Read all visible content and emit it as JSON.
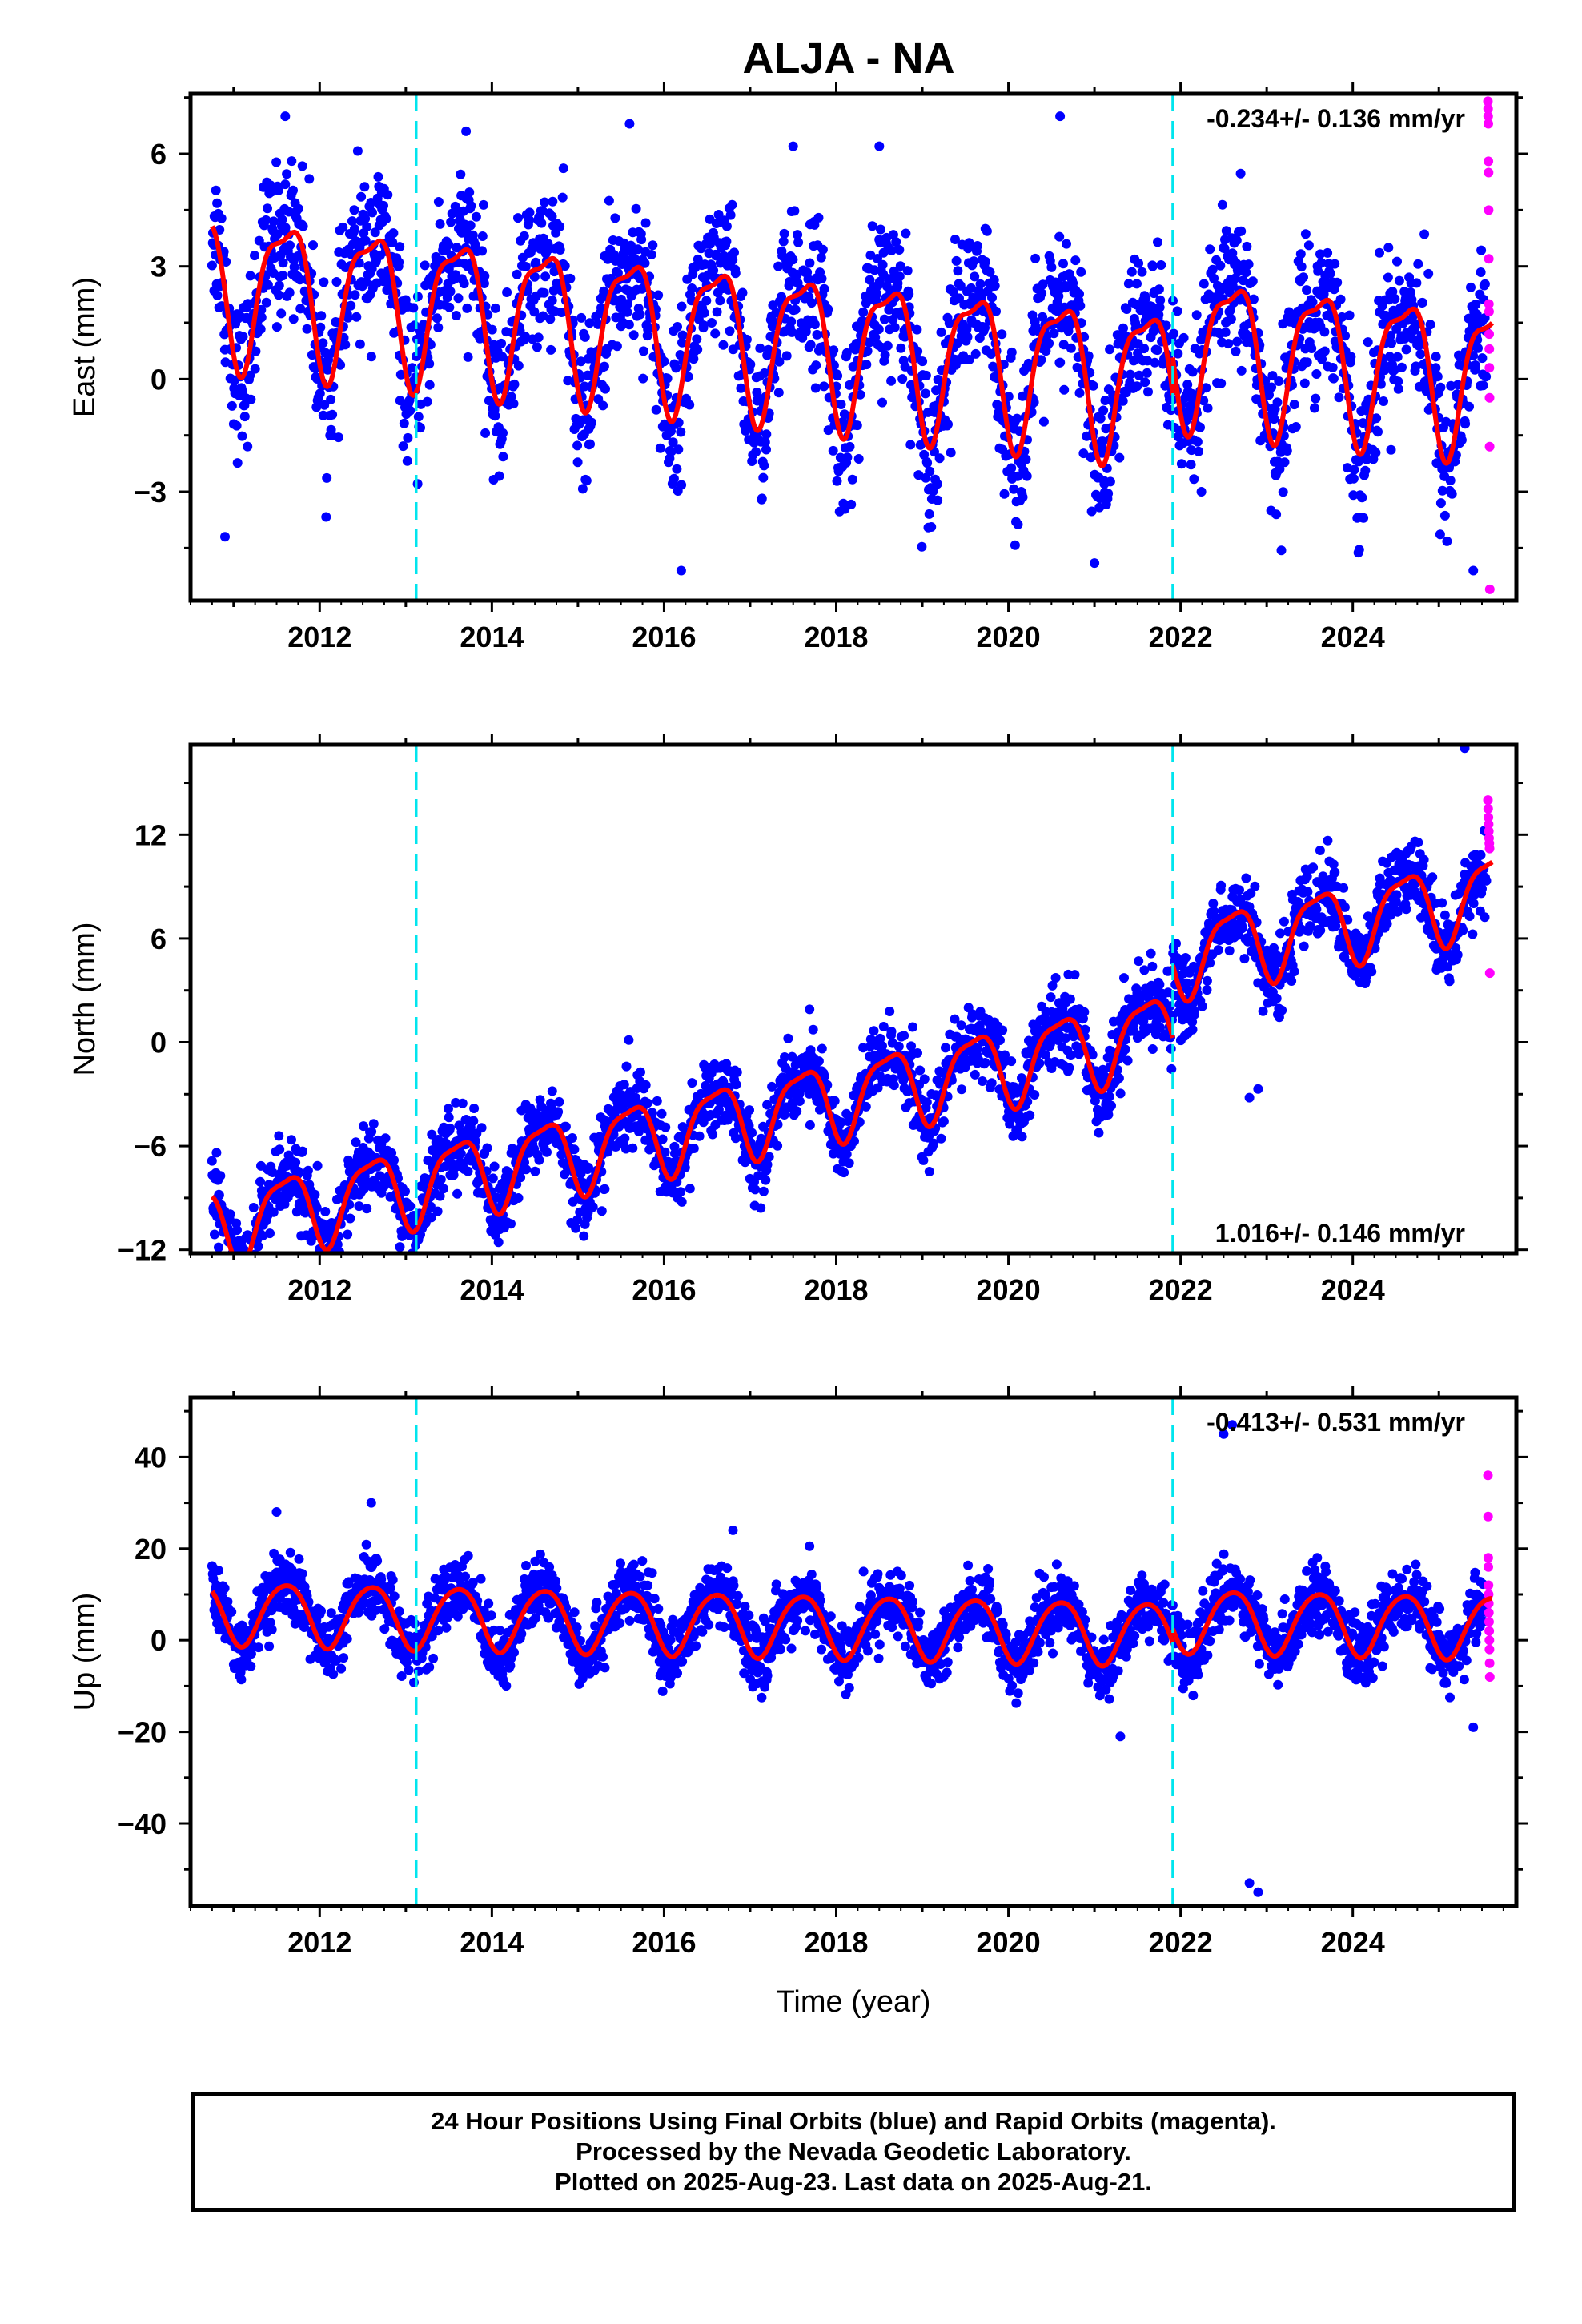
{
  "title": "ALJA - NA",
  "colors": {
    "final_orbits": "#0000ff",
    "rapid_orbits": "#ff00ff",
    "model_fit": "#ff0000",
    "offsets": "#00e5ee"
  },
  "footer": {
    "line1": "24 Hour Positions Using Final Orbits (blue) and Rapid Orbits (magenta).",
    "line2": "Processed by the Nevada Geodetic Laboratory.",
    "line3": "Plotted on 2025-Aug-23. Last data on 2025-Aug-21."
  },
  "chart_data": [
    {
      "type": "scatter",
      "ylabel": "East (mm)",
      "xlabel": "",
      "rate_text": "-0.234+/- 0.136 mm/yr",
      "xlim": [
        2010.5,
        2025.9
      ],
      "ylim": [
        -5.9,
        7.6
      ],
      "x_ticks": [
        2012,
        2014,
        2016,
        2018,
        2020,
        2022,
        2024
      ],
      "y_ticks": [
        -3,
        0,
        3,
        6
      ],
      "offset_epochs": [
        2013.12,
        2021.91
      ],
      "model": {
        "slope": -0.234,
        "intercept": 0.9,
        "annual_amp": 1.9,
        "semiannual_amp": 0.6,
        "segments": [
          [
            2010.75,
            2021.91
          ],
          [
            2021.91,
            2025.62
          ]
        ],
        "segment_offsets": [
          0,
          1.0
        ]
      },
      "final_orbits": {
        "first_epoch": 2010.75,
        "last_epoch": 2025.55,
        "scatter_sigma": 1.0,
        "outliers": [
          [
            2011.6,
            7.0
          ],
          [
            2013.7,
            6.6
          ],
          [
            2015.6,
            6.8
          ],
          [
            2017.5,
            6.2
          ],
          [
            2018.5,
            6.2
          ],
          [
            2020.6,
            7.0
          ],
          [
            2016.2,
            -5.1
          ],
          [
            2021.0,
            -4.9
          ],
          [
            2025.4,
            -5.1
          ],
          [
            2010.9,
            -4.2
          ]
        ]
      },
      "rapid_orbits": {
        "first_epoch": 2025.55,
        "last_epoch": 2025.62,
        "values": [
          7.4,
          7.2,
          7.0,
          6.8,
          5.8,
          5.5,
          4.5,
          3.2,
          2.0,
          1.8,
          1.2,
          0.8,
          0.3,
          -0.5,
          -1.8,
          -5.6
        ]
      }
    },
    {
      "type": "scatter",
      "ylabel": "North (mm)",
      "xlabel": "",
      "rate_text": "1.016+/- 0.146 mm/yr",
      "xlim": [
        2010.5,
        2025.9
      ],
      "ylim": [
        -12.2,
        17.2
      ],
      "x_ticks": [
        2012,
        2014,
        2016,
        2018,
        2020,
        2022,
        2024
      ],
      "y_ticks": [
        -12,
        -6,
        0,
        6,
        12
      ],
      "offset_epochs": [
        2013.12,
        2021.91
      ],
      "model": {
        "slope": 1.016,
        "intercept": -3.2,
        "annual_amp": 2.2,
        "semiannual_amp": 0.6,
        "segments": [
          [
            2010.75,
            2021.91
          ],
          [
            2021.91,
            2025.62
          ]
        ],
        "segment_offsets": [
          0,
          4.2
        ]
      },
      "final_orbits": {
        "first_epoch": 2010.75,
        "last_epoch": 2025.55,
        "scatter_sigma": 1.1,
        "outliers": [
          [
            2022.8,
            -3.2
          ],
          [
            2022.9,
            -2.7
          ],
          [
            2025.3,
            17.0
          ],
          [
            2012.9,
            -9.5
          ],
          [
            2011.0,
            -11.5
          ]
        ]
      },
      "rapid_orbits": {
        "first_epoch": 2025.55,
        "last_epoch": 2025.62,
        "values": [
          14.0,
          13.5,
          13.0,
          12.6,
          12.2,
          11.8,
          11.5,
          11.2,
          4.0
        ]
      }
    },
    {
      "type": "scatter",
      "ylabel": "Up (mm)",
      "xlabel": "Time (year)",
      "rate_text": "-0.413+/- 0.531 mm/yr",
      "xlim": [
        2010.5,
        2025.9
      ],
      "ylim": [
        -58,
        53
      ],
      "x_ticks": [
        2012,
        2014,
        2016,
        2018,
        2020,
        2022,
        2024
      ],
      "y_ticks": [
        -40,
        -20,
        0,
        20,
        40
      ],
      "offset_epochs": [
        2013.12,
        2021.91
      ],
      "model": {
        "slope": -0.413,
        "intercept": 3.2,
        "annual_amp": 6.8,
        "semiannual_amp": 0.8,
        "segments": [
          [
            2010.75,
            2021.91
          ],
          [
            2021.91,
            2025.62
          ]
        ],
        "segment_offsets": [
          0,
          3.0
        ]
      },
      "final_orbits": {
        "first_epoch": 2010.75,
        "last_epoch": 2025.55,
        "scatter_sigma": 3.5,
        "outliers": [
          [
            2012.6,
            30.0
          ],
          [
            2011.5,
            28.0
          ],
          [
            2016.8,
            24.0
          ],
          [
            2022.6,
            47.0
          ],
          [
            2022.5,
            45.0
          ],
          [
            2022.8,
            -53.0
          ],
          [
            2022.9,
            -55.0
          ],
          [
            2021.3,
            -21.0
          ],
          [
            2025.4,
            -19.0
          ]
        ]
      },
      "rapid_orbits": {
        "first_epoch": 2025.55,
        "last_epoch": 2025.62,
        "values": [
          36.0,
          27.0,
          18.0,
          16.0,
          12.0,
          10.0,
          8.0,
          6.0,
          4.0,
          2.0,
          0.0,
          -2.0,
          -5.0,
          -8.0
        ]
      }
    }
  ]
}
